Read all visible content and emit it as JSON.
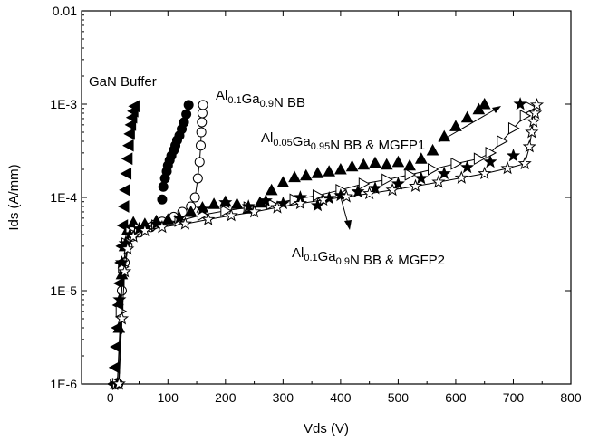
{
  "chart_data": {
    "type": "scatter",
    "xlabel": "Vds (V)",
    "ylabel": "Ids (A/mm)",
    "xlim": [
      -50,
      800
    ],
    "ylim": [
      1e-06,
      0.01
    ],
    "yscale": "log",
    "grid": false,
    "x_ticks": [
      0,
      100,
      200,
      300,
      400,
      500,
      600,
      700,
      800
    ],
    "x_tick_labels": [
      "0",
      "100",
      "200",
      "300",
      "400",
      "500",
      "600",
      "700",
      "800"
    ],
    "y_ticks": [
      1e-06,
      1e-05,
      0.0001,
      0.001,
      0.01
    ],
    "y_tick_labels": [
      "1E-6",
      "1E-5",
      "1E-4",
      "1E-3",
      "0.01"
    ],
    "annotations": [
      {
        "text": "GaN Buffer"
      },
      {
        "parts": [
          [
            "Al",
            ""
          ],
          [
            "0.1",
            "sub"
          ],
          [
            "Ga",
            ""
          ],
          [
            "0.9",
            "sub"
          ],
          [
            "N BB",
            ""
          ]
        ]
      },
      {
        "parts": [
          [
            "Al",
            ""
          ],
          [
            "0.05",
            "sub"
          ],
          [
            "Ga",
            ""
          ],
          [
            "0.95",
            "sub"
          ],
          [
            "N BB & MGFP1",
            ""
          ]
        ]
      },
      {
        "parts": [
          [
            "Al",
            ""
          ],
          [
            "0.1",
            "sub"
          ],
          [
            "Ga",
            ""
          ],
          [
            "0.9",
            "sub"
          ],
          [
            "N BB & MGFP2",
            ""
          ]
        ]
      }
    ],
    "series": [
      {
        "marker": "triangle-left-filled",
        "x": [
          5,
          8,
          10,
          12,
          14,
          16,
          18,
          20,
          22,
          24,
          26,
          28,
          30,
          32,
          34,
          36,
          38,
          40,
          42
        ],
        "y": [
          1e-06,
          1.5e-06,
          2.5e-06,
          4e-06,
          7e-06,
          1.2e-05,
          2e-05,
          3e-05,
          5e-05,
          8e-05,
          0.00012,
          0.00018,
          0.00026,
          0.00036,
          0.00048,
          0.0006,
          0.00072,
          0.00084,
          0.00095
        ]
      },
      {
        "marker": "circle-filled",
        "x": [
          90,
          92,
          95,
          98,
          100,
          103,
          106,
          110,
          113,
          116,
          120,
          124,
          128,
          132,
          136
        ],
        "y": [
          9.5e-05,
          0.00013,
          0.00016,
          0.00019,
          0.00022,
          0.00025,
          0.00028,
          0.00032,
          0.00036,
          0.00041,
          0.00046,
          0.00054,
          0.00064,
          0.00078,
          0.00098
        ]
      },
      {
        "marker": "circle-open",
        "line": true,
        "x": [
          14,
          20,
          25,
          30,
          38,
          50,
          70,
          90,
          110,
          125,
          140,
          147,
          152,
          155,
          157,
          158,
          159,
          160,
          161
        ],
        "y": [
          1e-06,
          1e-05,
          2e-05,
          3e-05,
          3.8e-05,
          4.2e-05,
          4.8e-05,
          5.5e-05,
          6.2e-05,
          7e-05,
          8e-05,
          0.0001,
          0.00016,
          0.00024,
          0.00036,
          0.0005,
          0.00064,
          0.0008,
          0.00098
        ]
      },
      {
        "marker": "triangle-up-filled",
        "x": [
          10,
          15,
          20,
          25,
          30,
          40,
          60,
          80,
          100,
          120,
          140,
          160,
          180,
          200,
          220,
          240,
          260,
          280,
          300,
          320,
          340,
          360,
          380,
          400,
          420,
          440,
          460,
          480,
          500,
          520,
          540,
          560,
          580,
          600,
          620,
          640,
          650
        ],
        "y": [
          1e-06,
          4e-06,
          1.5e-05,
          3e-05,
          4.5e-05,
          5.4e-05,
          5.2e-05,
          5.6e-05,
          5.8e-05,
          6e-05,
          7e-05,
          7.8e-05,
          8.5e-05,
          9e-05,
          8.5e-05,
          7.6e-05,
          8.8e-05,
          0.00012,
          0.000145,
          0.000165,
          0.000172,
          0.000182,
          0.00019,
          0.0002,
          0.000215,
          0.000225,
          0.000235,
          0.000225,
          0.00024,
          0.00022,
          0.00026,
          0.00032,
          0.00045,
          0.00058,
          0.00072,
          0.00088,
          0.001
        ]
      },
      {
        "marker": "triangle-right-open",
        "line": true,
        "x": [
          12,
          18,
          22,
          28,
          35,
          50,
          80,
          120,
          160,
          200,
          240,
          280,
          320,
          360,
          400,
          440,
          480,
          520,
          560,
          600,
          640,
          660,
          680,
          700,
          720,
          730
        ],
        "y": [
          1e-06,
          6e-06,
          1.8e-05,
          3.2e-05,
          4.2e-05,
          4.6e-05,
          5e-05,
          5.6e-05,
          6.5e-05,
          7.2e-05,
          7.8e-05,
          8.5e-05,
          9.5e-05,
          0.000105,
          0.00012,
          0.00014,
          0.000155,
          0.000175,
          0.0002,
          0.00023,
          0.00026,
          0.0003,
          0.0004,
          0.00055,
          0.00075,
          0.00092
        ]
      },
      {
        "marker": "star-filled",
        "x": [
          12,
          16,
          20,
          26,
          34,
          50,
          80,
          120,
          160,
          200,
          240,
          270,
          300,
          330,
          360,
          380,
          400,
          430,
          460,
          500,
          540,
          580,
          620,
          660,
          700,
          712
        ],
        "y": [
          1e-06,
          8e-06,
          2e-05,
          3.2e-05,
          4e-05,
          4.6e-05,
          5.2e-05,
          6e-05,
          7.5e-05,
          8.8e-05,
          8e-05,
          9.2e-05,
          8.6e-05,
          0.0001,
          8.2e-05,
          9.8e-05,
          0.000105,
          0.000115,
          0.000125,
          0.00014,
          0.00016,
          0.00018,
          0.00021,
          0.00024,
          0.00028,
          0.001
        ]
      },
      {
        "marker": "star-open",
        "line": true,
        "x": [
          15,
          20,
          25,
          30,
          40,
          60,
          90,
          130,
          170,
          210,
          250,
          290,
          330,
          370,
          410,
          450,
          490,
          530,
          570,
          610,
          650,
          690,
          720,
          728,
          732,
          735,
          738,
          741
        ],
        "y": [
          1e-06,
          5e-06,
          1.6e-05,
          2.8e-05,
          3.8e-05,
          4.4e-05,
          4.8e-05,
          5.2e-05,
          5.8e-05,
          6.4e-05,
          7e-05,
          7.8e-05,
          8.6e-05,
          9.4e-05,
          0.000102,
          0.00011,
          0.00012,
          0.000132,
          0.000146,
          0.000162,
          0.00018,
          0.000205,
          0.00023,
          0.00035,
          0.0005,
          0.00065,
          0.0008,
          0.00098
        ]
      }
    ]
  }
}
